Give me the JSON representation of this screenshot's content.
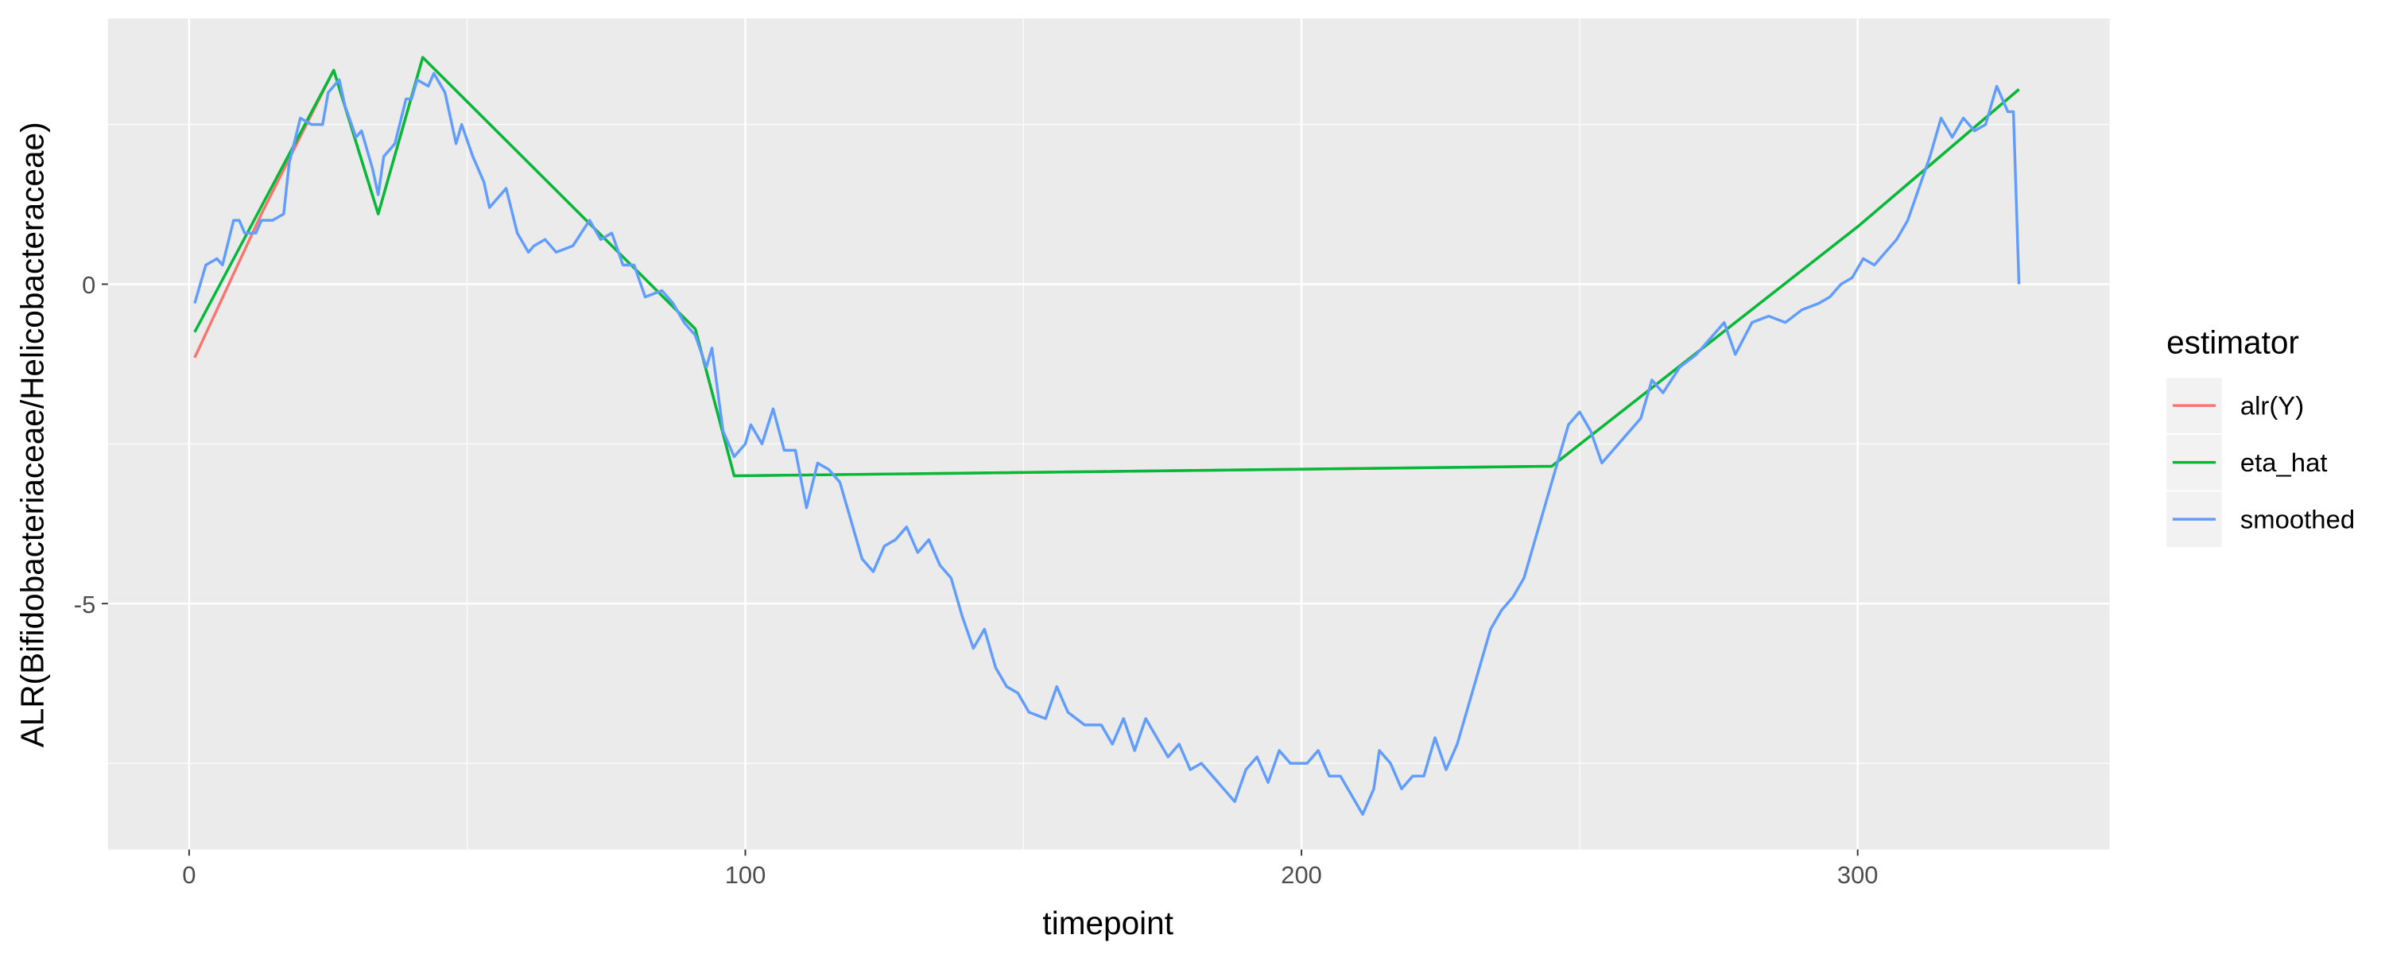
{
  "chart_data": {
    "type": "line",
    "x_label": "timepoint",
    "y_label": "ALR(Bifidobacteriaceae/Helicobacteraceae)",
    "xlim": [
      -14.6,
      345.3
    ],
    "ylim": [
      -8.85,
      4.16
    ],
    "xticks": [
      0,
      100,
      200,
      300
    ],
    "yticks": [
      -5,
      0
    ],
    "grid": true,
    "minor_grid": true,
    "legend_title": "estimator",
    "legend_position": "right",
    "series": [
      {
        "name": "alr(Y)",
        "color": "#f8766d",
        "x": [
          1,
          13,
          26,
          34,
          42,
          91,
          98,
          245,
          300,
          329
        ],
        "values": [
          -1.15,
          1.1,
          3.35,
          1.1,
          3.55,
          -0.7,
          -3.0,
          -2.85,
          0.9,
          3.05
        ]
      },
      {
        "name": "eta_hat",
        "color": "#00ba38",
        "x": [
          1,
          26,
          34,
          42,
          91,
          98,
          245,
          300,
          329
        ],
        "values": [
          -0.75,
          3.35,
          1.1,
          3.55,
          -0.7,
          -3.0,
          -2.85,
          0.9,
          3.05
        ]
      },
      {
        "name": "smoothed",
        "color": "#619cff",
        "x": [
          1,
          3,
          5,
          6,
          8,
          9,
          10,
          12,
          13,
          15,
          17,
          18,
          20,
          22,
          24,
          25,
          27,
          28,
          30,
          31,
          33,
          34,
          35,
          37,
          39,
          40,
          41,
          43,
          44,
          46,
          48,
          49,
          51,
          53,
          54,
          57,
          59,
          61,
          62,
          64,
          66,
          69,
          72,
          74,
          76,
          78,
          80,
          82,
          85,
          87,
          89,
          91,
          93,
          94,
          96,
          98,
          100,
          101,
          103,
          105,
          107,
          109,
          111,
          113,
          115,
          117,
          119,
          121,
          123,
          125,
          127,
          129,
          131,
          133,
          135,
          137,
          139,
          141,
          143,
          145,
          147,
          149,
          151,
          154,
          156,
          158,
          161,
          164,
          166,
          168,
          170,
          172,
          174,
          176,
          178,
          180,
          182,
          184,
          186,
          188,
          190,
          192,
          194,
          196,
          198,
          201,
          203,
          205,
          207,
          209,
          211,
          213,
          214,
          216,
          218,
          220,
          222,
          224,
          226,
          228,
          230,
          232,
          234,
          236,
          238,
          240,
          242,
          244,
          246,
          248,
          250,
          252,
          254,
          256,
          258,
          261,
          263,
          265,
          268,
          271,
          273,
          276,
          278,
          281,
          284,
          287,
          290,
          293,
          295,
          297,
          299,
          301,
          303,
          305,
          307,
          309,
          311,
          313,
          315,
          317,
          319,
          321,
          323,
          325,
          327,
          328,
          329
        ],
        "values": [
          -0.3,
          0.3,
          0.4,
          0.3,
          1.0,
          1.0,
          0.8,
          0.8,
          1.0,
          1.0,
          1.1,
          1.9,
          2.6,
          2.5,
          2.5,
          3.0,
          3.2,
          2.8,
          2.3,
          2.4,
          1.8,
          1.4,
          2.0,
          2.2,
          2.9,
          2.9,
          3.2,
          3.1,
          3.3,
          3.0,
          2.2,
          2.5,
          2.0,
          1.6,
          1.2,
          1.5,
          0.8,
          0.5,
          0.6,
          0.7,
          0.5,
          0.6,
          1.0,
          0.7,
          0.8,
          0.3,
          0.3,
          -0.2,
          -0.1,
          -0.3,
          -0.6,
          -0.8,
          -1.3,
          -1.0,
          -2.3,
          -2.7,
          -2.5,
          -2.2,
          -2.5,
          -1.95,
          -2.6,
          -2.6,
          -3.5,
          -2.8,
          -2.9,
          -3.1,
          -3.7,
          -4.3,
          -4.5,
          -4.1,
          -4.0,
          -3.8,
          -4.2,
          -4.0,
          -4.4,
          -4.6,
          -5.2,
          -5.7,
          -5.4,
          -6.0,
          -6.3,
          -6.4,
          -6.7,
          -6.8,
          -6.3,
          -6.7,
          -6.9,
          -6.9,
          -7.2,
          -6.8,
          -7.3,
          -6.8,
          -7.1,
          -7.4,
          -7.2,
          -7.6,
          -7.5,
          -7.7,
          -7.9,
          -8.1,
          -7.6,
          -7.4,
          -7.8,
          -7.3,
          -7.5,
          -7.5,
          -7.3,
          -7.7,
          -7.7,
          -8.0,
          -8.3,
          -7.9,
          -7.3,
          -7.5,
          -7.9,
          -7.7,
          -7.7,
          -7.1,
          -7.6,
          -7.2,
          -6.6,
          -6.0,
          -5.4,
          -5.1,
          -4.9,
          -4.6,
          -4.0,
          -3.4,
          -2.8,
          -2.2,
          -2.0,
          -2.3,
          -2.8,
          -2.6,
          -2.4,
          -2.1,
          -1.5,
          -1.7,
          -1.3,
          -1.1,
          -0.9,
          -0.6,
          -1.1,
          -0.6,
          -0.5,
          -0.6,
          -0.4,
          -0.3,
          -0.2,
          0.0,
          0.1,
          0.4,
          0.3,
          0.5,
          0.7,
          1.0,
          1.5,
          2.0,
          2.6,
          2.3,
          2.6,
          2.4,
          2.5,
          3.1,
          2.7,
          2.7,
          0.0
        ]
      }
    ]
  }
}
